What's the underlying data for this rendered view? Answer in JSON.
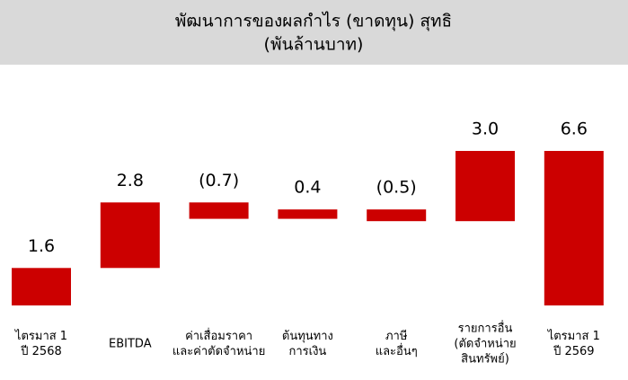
{
  "chart_data": {
    "type": "waterfall",
    "title": [
      "พัฒนาการของผลกำไร (ขาดทุน) สุทธิ",
      "(พันล้านบาท)"
    ],
    "categories": [
      [
        "ไตรมาส 1",
        "ปี 2568"
      ],
      [
        "EBITDA"
      ],
      [
        "ค่าเสื่อมราคา",
        "และค่าตัดจำหน่าย"
      ],
      [
        "ต้นทุนทาง",
        "การเงิน"
      ],
      [
        "ภาษี",
        "และอื่นๆ"
      ],
      [
        "รายการอื่น",
        "(ตัดจำหน่าย",
        "สินทรัพย์)"
      ],
      [
        "ไตรมาส 1",
        "ปี 2569"
      ]
    ],
    "values": [
      1.6,
      2.8,
      -0.7,
      0.4,
      -0.5,
      3.0,
      6.6
    ],
    "value_labels": [
      "1.6",
      "2.8",
      "(0.7)",
      "0.4",
      "(0.5)",
      "3.0",
      "6.6"
    ],
    "color": "#cc0000"
  }
}
